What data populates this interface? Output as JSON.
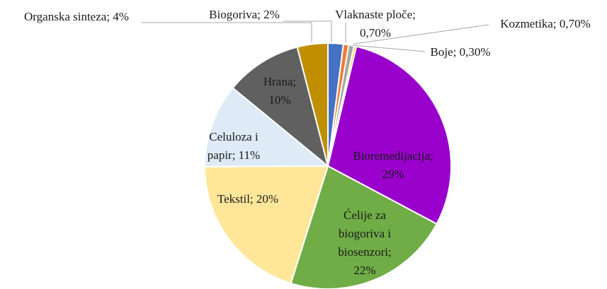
{
  "chart_data": {
    "type": "pie",
    "labels": [
      [
        "Biogoriva; 2%"
      ],
      [
        "Vlaknaste ploče;",
        "0,70%"
      ],
      [
        "Kozmetika; 0,70%"
      ],
      [
        "Boje; 0,30%"
      ],
      [
        "Bioremedijacija;",
        "29%"
      ],
      [
        "Ćelije za",
        "biogoriva i",
        "biosenzori;",
        "22%"
      ],
      [
        "Tekstil; 20%"
      ],
      [
        "Celuloza i",
        "papir; 11%"
      ],
      [
        "Hrana;",
        "10%"
      ],
      [
        "Organska sinteza; 4%"
      ]
    ],
    "values": [
      2,
      0.7,
      0.7,
      0.3,
      29,
      22,
      20,
      11,
      10,
      4
    ],
    "colors": [
      "#4472c4",
      "#ed7d31",
      "#a5a5a5",
      "#ffc000",
      "#9900cc",
      "#70ad47",
      "#ffe699",
      "#deebf7",
      "#606060",
      "#bf8f00"
    ]
  }
}
